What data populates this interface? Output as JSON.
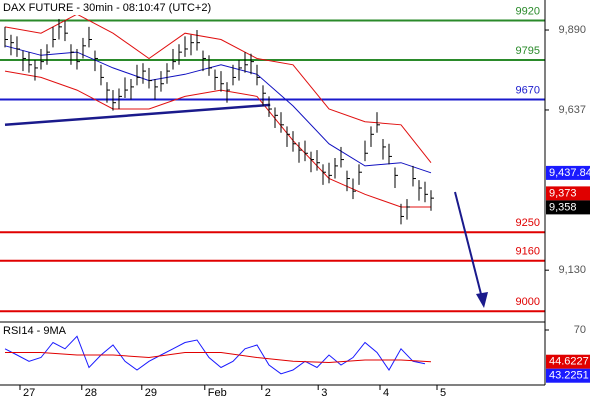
{
  "chart_data": [
    {
      "type": "ohlc",
      "title": "DAX FUTURE - 30min - 08:10:47 (UTC+2)",
      "x": [
        0,
        1,
        2,
        3,
        4,
        5,
        6,
        7,
        8,
        9,
        10,
        11,
        12,
        13,
        14,
        15,
        16,
        17,
        18,
        19,
        20,
        21,
        22,
        23,
        24,
        25,
        26,
        27,
        28,
        29,
        30,
        31,
        32,
        33,
        34,
        35,
        36,
        37,
        38,
        39,
        40,
        41,
        42,
        43,
        44,
        45,
        46,
        47,
        48,
        49,
        50,
        51,
        52,
        53,
        54,
        55,
        56,
        57,
        58,
        59,
        60,
        61,
        62,
        63,
        64,
        65,
        66,
        67,
        68,
        69,
        70,
        71
      ],
      "high": [
        9900,
        9875,
        9870,
        9825,
        9820,
        9795,
        9830,
        9845,
        9900,
        9925,
        9920,
        9845,
        9830,
        9865,
        9900,
        9825,
        9780,
        9725,
        9700,
        9705,
        9740,
        9735,
        9780,
        9785,
        9770,
        9735,
        9760,
        9785,
        9830,
        9845,
        9870,
        9875,
        9890,
        9825,
        9810,
        9765,
        9760,
        9725,
        9780,
        9795,
        9820,
        9815,
        9780,
        9715,
        9680,
        9645,
        9630,
        9585,
        9570,
        9535,
        9540,
        9505,
        9510,
        9465,
        9470,
        9485,
        9520,
        9445,
        9420,
        9465,
        9540,
        9585,
        9630,
        9545,
        9530,
        9455,
        9340,
        9355,
        9460,
        9415,
        9410,
        9383
      ],
      "low": [
        9835,
        9810,
        9805,
        9760,
        9755,
        9730,
        9765,
        9780,
        9835,
        9860,
        9855,
        9780,
        9765,
        9800,
        9835,
        9760,
        9715,
        9660,
        9635,
        9640,
        9675,
        9670,
        9715,
        9720,
        9705,
        9670,
        9695,
        9720,
        9765,
        9780,
        9805,
        9810,
        9825,
        9760,
        9745,
        9700,
        9695,
        9660,
        9715,
        9730,
        9755,
        9750,
        9715,
        9650,
        9615,
        9580,
        9565,
        9520,
        9505,
        9470,
        9475,
        9440,
        9445,
        9400,
        9405,
        9420,
        9455,
        9380,
        9355,
        9400,
        9475,
        9520,
        9565,
        9480,
        9465,
        9390,
        9275,
        9290,
        9395,
        9350,
        9345,
        9318
      ],
      "close": [
        9860,
        9850,
        9830,
        9800,
        9780,
        9770,
        9790,
        9820,
        9860,
        9900,
        9880,
        9820,
        9790,
        9840,
        9860,
        9800,
        9740,
        9700,
        9660,
        9680,
        9700,
        9710,
        9740,
        9760,
        9730,
        9710,
        9720,
        9760,
        9790,
        9820,
        9830,
        9850,
        9850,
        9800,
        9770,
        9740,
        9720,
        9700,
        9740,
        9770,
        9780,
        9790,
        9740,
        9690,
        9640,
        9620,
        9590,
        9560,
        9530,
        9510,
        9500,
        9480,
        9470,
        9440,
        9430,
        9460,
        9480,
        9420,
        9380,
        9440,
        9500,
        9560,
        9590,
        9520,
        9490,
        9430,
        9300,
        9330,
        9420,
        9390,
        9370,
        9358
      ],
      "color": "#000000",
      "xlim": [
        -0.83,
        90
      ],
      "ylim": [
        8966,
        9985
      ],
      "yticks": [
        {
          "value": 9890,
          "label": "9,890"
        },
        {
          "value": 9637,
          "label": "9,637"
        },
        {
          "value": 9130,
          "label": "9,130"
        }
      ],
      "xticks": [
        {
          "value": 2.5,
          "label": "27"
        },
        {
          "value": 12.8,
          "label": "28"
        },
        {
          "value": 22.8,
          "label": "29"
        },
        {
          "value": 33.3,
          "label": "Feb"
        },
        {
          "value": 42.8,
          "label": "2"
        },
        {
          "value": 52.2,
          "label": "3"
        },
        {
          "value": 62.5,
          "label": "4"
        },
        {
          "value": 72,
          "label": "5"
        }
      ],
      "bands": {
        "x": [
          0,
          6,
          12,
          18,
          24,
          30,
          36,
          42,
          48,
          54,
          60,
          66,
          71
        ],
        "upper": [
          9900,
          9880,
          9940,
          9880,
          9800,
          9880,
          9860,
          9800,
          9780,
          9640,
          9600,
          9590,
          9470
        ],
        "middle": [
          9840,
          9810,
          9820,
          9770,
          9730,
          9750,
          9780,
          9750,
          9650,
          9530,
          9460,
          9470,
          9438
        ],
        "lower": [
          9760,
          9740,
          9700,
          9640,
          9640,
          9680,
          9700,
          9680,
          9540,
          9420,
          9370,
          9330,
          9330
        ],
        "band_color": "#e01010",
        "middle_color": "#1010c0"
      },
      "trendline": {
        "x": [
          0,
          44.2
        ],
        "values": [
          9590,
          9653
        ],
        "color": "#1a1a8c"
      },
      "levels": [
        {
          "value": 9920,
          "color": "#2a8a2a"
        },
        {
          "value": 9795,
          "color": "#2a8a2a"
        },
        {
          "value": 9670,
          "color": "#1a1acc"
        },
        {
          "value": 9250,
          "color": "#e00000"
        },
        {
          "value": 9160,
          "color": "#e00000"
        },
        {
          "value": 9000,
          "color": "#e00000"
        }
      ],
      "price_tags": [
        {
          "value": 9437.84,
          "label": "9,437.84",
          "color": "#1a1aff"
        },
        {
          "value": 9373,
          "label": "9,373",
          "color": "#e00000"
        },
        {
          "value": 9358,
          "label": "9,358",
          "color": "#000000"
        }
      ]
    },
    {
      "type": "line",
      "title": "RSI14 - 9MA",
      "ylim": [
        26,
        76.4
      ],
      "yticks": [
        70
      ],
      "series": [
        {
          "color": "#1a1aff",
          "x": [
            0,
            2,
            4,
            6,
            8,
            10,
            12,
            14,
            16,
            18,
            20,
            22,
            24,
            26,
            28,
            30,
            32,
            34,
            36,
            38,
            40,
            42,
            44,
            46,
            48,
            50,
            52,
            54,
            56,
            58,
            60,
            62,
            64,
            66,
            68,
            70
          ],
          "values": [
            55,
            50,
            45,
            48,
            60,
            55,
            65,
            40,
            50,
            58,
            45,
            38,
            45,
            50,
            55,
            60,
            62,
            48,
            40,
            45,
            55,
            58,
            42,
            35,
            38,
            45,
            40,
            50,
            42,
            48,
            60,
            52,
            38,
            55,
            45,
            43
          ]
        },
        {
          "color": "#e00000",
          "x": [
            0,
            6,
            12,
            18,
            24,
            30,
            36,
            42,
            48,
            54,
            60,
            66,
            71
          ],
          "values": [
            52,
            52,
            50,
            50,
            48,
            52,
            52,
            48,
            45,
            44,
            46,
            46,
            44.6
          ]
        }
      ],
      "value_tags": [
        {
          "value": 44.6227,
          "color": "#e00000"
        },
        {
          "value": 43.2251,
          "color": "#1a1aff"
        }
      ]
    }
  ]
}
